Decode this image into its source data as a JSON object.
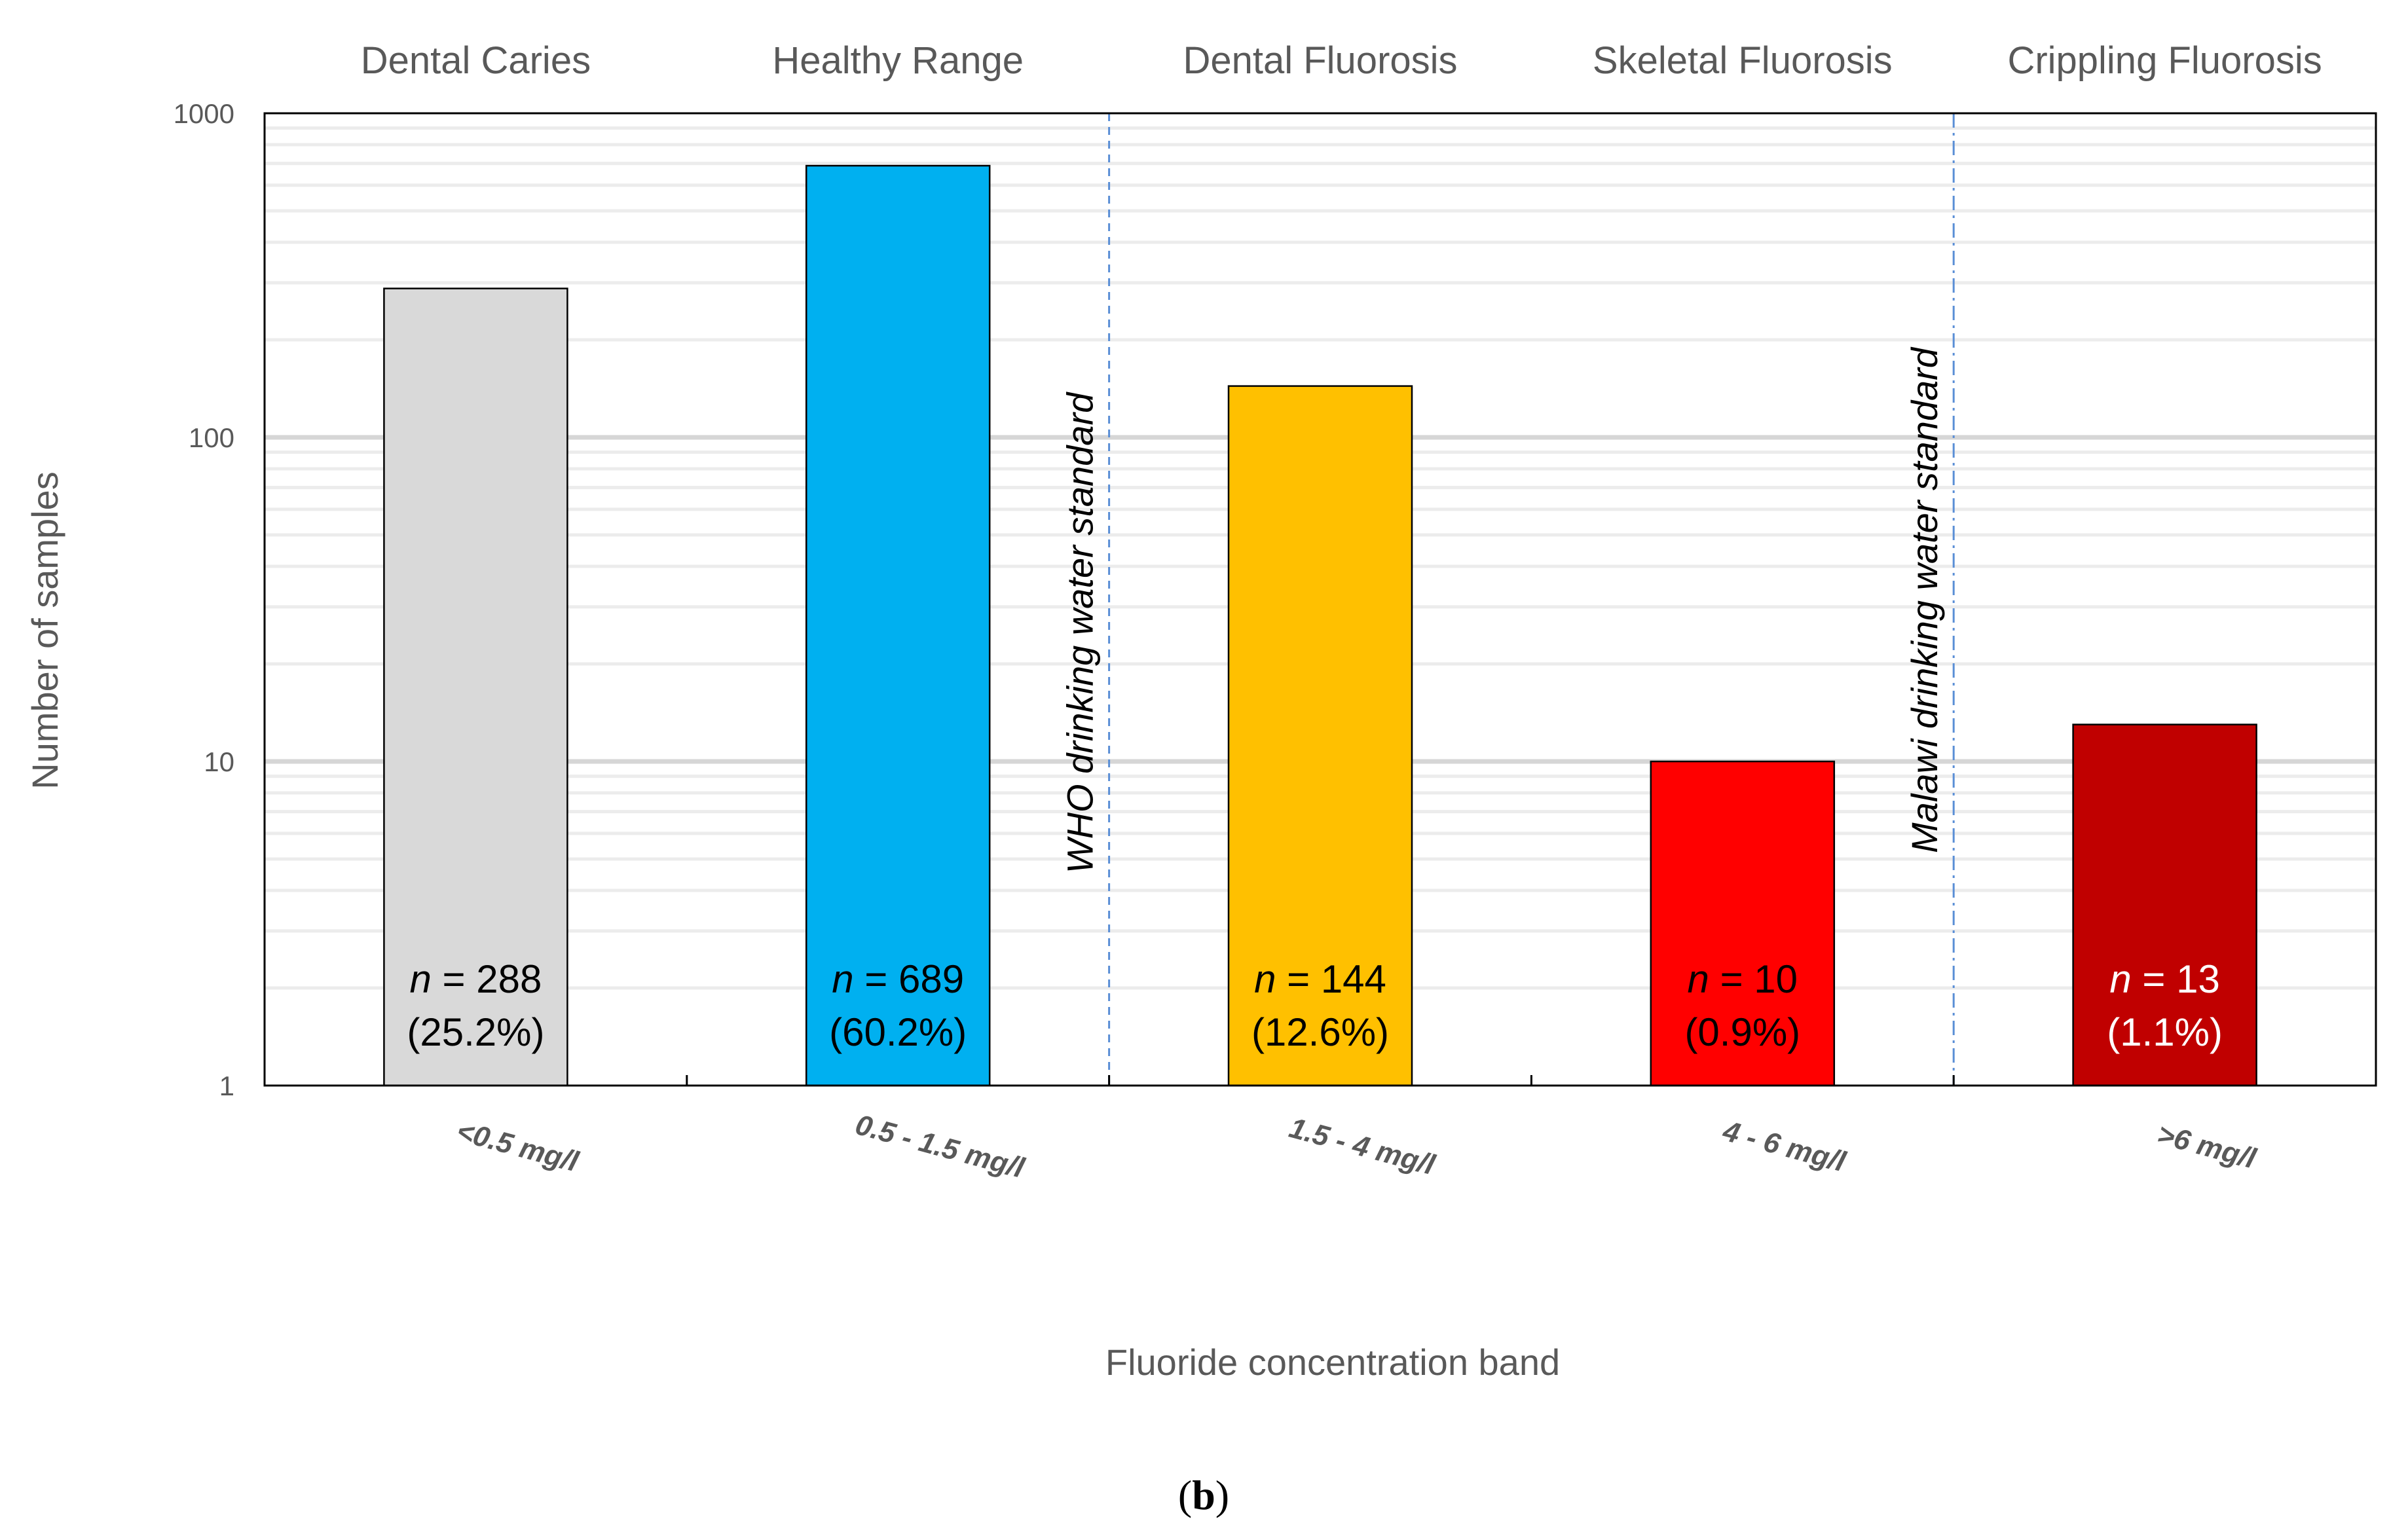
{
  "chart_data": {
    "type": "bar",
    "yscale": "log",
    "ylim": [
      1,
      1000
    ],
    "ylabel": "Number of samples",
    "xlabel": "Fluoride concentration band",
    "yticks": [
      "1",
      "10",
      "100",
      "1000"
    ],
    "categories": [
      "<0.5 mg/l",
      "0.5 - 1.5 mg/l",
      "1.5 - 4 mg/l",
      "4 - 6 mg/l",
      ">6 mg/l"
    ],
    "band_labels": [
      "Dental Caries",
      "Healthy Range",
      "Dental Fluorosis",
      "Skeletal Fluorosis",
      "Crippling Fluorosis"
    ],
    "values": [
      288,
      689,
      144,
      10,
      13
    ],
    "percent_labels": [
      "(25.2%)",
      "(60.2%)",
      "(12.6%)",
      "(0.9%)",
      "(1.1%)"
    ],
    "colors": [
      "#d9d9d9",
      "#00b0f0",
      "#ffc000",
      "#ff0000",
      "#c00000"
    ],
    "label_colors": [
      "#000000",
      "#000000",
      "#000000",
      "#000000",
      "#ffffff"
    ],
    "n_prefix": "n",
    "reference_lines": [
      {
        "label": "WHO drinking water standard",
        "after_category": 1
      },
      {
        "label": "Malawi drinking water standard",
        "after_category": 3
      }
    ],
    "panel_label": "b"
  }
}
